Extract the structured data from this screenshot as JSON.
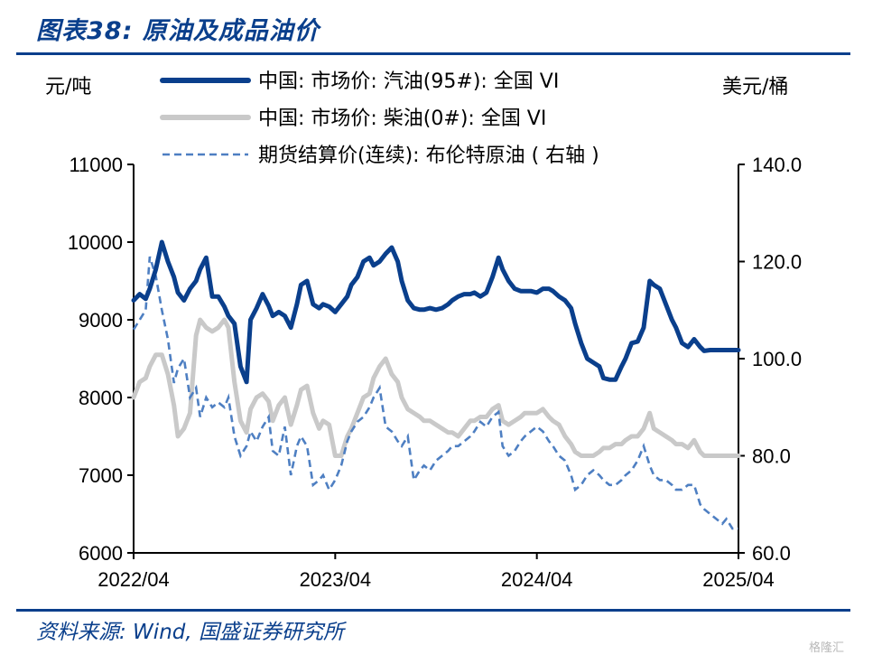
{
  "page": {
    "title": "图表38:  原油及成品油价",
    "source": "资料来源:  Wind,  国盛证券研究所",
    "watermark": "格隆汇"
  },
  "chart_data": {
    "type": "line",
    "title": "图表38:  原油及成品油价",
    "left_axis_unit": "元/吨",
    "right_axis_unit": "美元/桶",
    "left_ylim": [
      6000,
      11000
    ],
    "left_yticks": [
      "11000",
      "10000",
      "9000",
      "8000",
      "7000",
      "6000"
    ],
    "right_ylim": [
      60,
      140
    ],
    "right_yticks": [
      "140.0",
      "120.0",
      "100.0",
      "80.0",
      "60.0"
    ],
    "x_range": [
      2022.25,
      2025.25
    ],
    "x_ticks": [
      "2022/04",
      "2023/04",
      "2024/04",
      "2025/04"
    ],
    "grid": false,
    "legend_position": "top",
    "series": [
      {
        "name": "中国: 市场价: 汽油(95#): 全国 VI",
        "axis": "left",
        "color": "#0a3f8c",
        "style": "solid-thick",
        "x": [
          2022.25,
          2022.28,
          2022.31,
          2022.33,
          2022.36,
          2022.39,
          2022.42,
          2022.45,
          2022.47,
          2022.5,
          2022.53,
          2022.56,
          2022.58,
          2022.61,
          2022.64,
          2022.67,
          2022.7,
          2022.72,
          2022.75,
          2022.78,
          2022.81,
          2022.83,
          2022.86,
          2022.89,
          2022.92,
          2022.94,
          2022.97,
          2023.0,
          2023.03,
          2023.06,
          2023.08,
          2023.11,
          2023.14,
          2023.17,
          2023.19,
          2023.22,
          2023.25,
          2023.28,
          2023.31,
          2023.33,
          2023.36,
          2023.39,
          2023.42,
          2023.44,
          2023.47,
          2023.5,
          2023.53,
          2023.56,
          2023.58,
          2023.61,
          2023.64,
          2023.67,
          2023.69,
          2023.72,
          2023.75,
          2023.78,
          2023.81,
          2023.83,
          2023.86,
          2023.89,
          2023.92,
          2023.94,
          2023.97,
          2024.0,
          2024.03,
          2024.06,
          2024.08,
          2024.11,
          2024.14,
          2024.17,
          2024.19,
          2024.22,
          2024.25,
          2024.28,
          2024.31,
          2024.33,
          2024.36,
          2024.39,
          2024.42,
          2024.44,
          2024.47,
          2024.5,
          2024.53,
          2024.56,
          2024.58,
          2024.61,
          2024.64,
          2024.67,
          2024.69,
          2024.72,
          2024.75,
          2024.78,
          2024.81,
          2024.83,
          2024.86,
          2024.89,
          2024.92,
          2024.94,
          2024.97,
          2025.0,
          2025.03,
          2025.06,
          2025.08,
          2025.11,
          2025.14,
          2025.17,
          2025.19,
          2025.22,
          2025.25
        ],
        "values": [
          9250,
          9330,
          9270,
          9400,
          9650,
          10000,
          9750,
          9550,
          9350,
          9250,
          9400,
          9500,
          9650,
          9800,
          9300,
          9300,
          9170,
          9050,
          8950,
          8400,
          8200,
          9000,
          9150,
          9330,
          9180,
          9050,
          9100,
          9050,
          8900,
          9200,
          9450,
          9500,
          9200,
          9150,
          9200,
          9170,
          9100,
          9200,
          9300,
          9450,
          9550,
          9750,
          9800,
          9700,
          9750,
          9850,
          9930,
          9750,
          9500,
          9250,
          9150,
          9130,
          9130,
          9150,
          9130,
          9150,
          9200,
          9250,
          9300,
          9330,
          9330,
          9350,
          9300,
          9350,
          9550,
          9800,
          9650,
          9500,
          9400,
          9370,
          9370,
          9370,
          9350,
          9400,
          9400,
          9370,
          9300,
          9250,
          9150,
          8950,
          8700,
          8500,
          8450,
          8400,
          8250,
          8230,
          8230,
          8400,
          8500,
          8700,
          8720,
          8900,
          9500,
          9450,
          9400,
          9200,
          9000,
          8900,
          8700,
          8650,
          8750,
          8650,
          8600,
          8610,
          8610,
          8610,
          8610,
          8610,
          8610
        ]
      },
      {
        "name": "中国: 市场价: 柴油(0#): 全国 VI",
        "axis": "left",
        "color": "#c9c9c9",
        "style": "solid-thick",
        "x": [
          2022.25,
          2022.28,
          2022.31,
          2022.33,
          2022.36,
          2022.39,
          2022.42,
          2022.45,
          2022.47,
          2022.5,
          2022.53,
          2022.56,
          2022.58,
          2022.61,
          2022.64,
          2022.67,
          2022.7,
          2022.72,
          2022.75,
          2022.78,
          2022.81,
          2022.83,
          2022.86,
          2022.89,
          2022.92,
          2022.94,
          2022.97,
          2023.0,
          2023.03,
          2023.06,
          2023.08,
          2023.11,
          2023.14,
          2023.17,
          2023.19,
          2023.22,
          2023.25,
          2023.28,
          2023.31,
          2023.33,
          2023.36,
          2023.39,
          2023.42,
          2023.44,
          2023.47,
          2023.5,
          2023.53,
          2023.56,
          2023.58,
          2023.61,
          2023.64,
          2023.67,
          2023.69,
          2023.72,
          2023.75,
          2023.78,
          2023.81,
          2023.83,
          2023.86,
          2023.89,
          2023.92,
          2023.94,
          2023.97,
          2024.0,
          2024.03,
          2024.06,
          2024.08,
          2024.11,
          2024.14,
          2024.17,
          2024.19,
          2024.22,
          2024.25,
          2024.28,
          2024.31,
          2024.33,
          2024.36,
          2024.39,
          2024.42,
          2024.44,
          2024.47,
          2024.5,
          2024.53,
          2024.56,
          2024.58,
          2024.61,
          2024.64,
          2024.67,
          2024.69,
          2024.72,
          2024.75,
          2024.78,
          2024.81,
          2024.83,
          2024.86,
          2024.89,
          2024.92,
          2024.94,
          2024.97,
          2025.0,
          2025.03,
          2025.06,
          2025.08,
          2025.11,
          2025.14,
          2025.17,
          2025.19,
          2025.22,
          2025.25
        ],
        "values": [
          8000,
          8200,
          8250,
          8400,
          8550,
          8550,
          8300,
          7900,
          7500,
          7600,
          7800,
          8800,
          9000,
          8900,
          8850,
          8900,
          9000,
          8900,
          8200,
          7700,
          7550,
          7850,
          8000,
          8050,
          7950,
          7700,
          7900,
          8000,
          7650,
          7900,
          8100,
          8150,
          7800,
          7600,
          7700,
          7650,
          7250,
          7250,
          7500,
          7600,
          7800,
          8000,
          8050,
          8250,
          8400,
          8500,
          8300,
          8200,
          8000,
          7850,
          7800,
          7750,
          7700,
          7700,
          7650,
          7600,
          7550,
          7550,
          7500,
          7600,
          7700,
          7700,
          7750,
          7750,
          7850,
          7900,
          7700,
          7650,
          7700,
          7750,
          7800,
          7800,
          7800,
          7850,
          7750,
          7700,
          7650,
          7500,
          7400,
          7300,
          7250,
          7250,
          7250,
          7300,
          7350,
          7350,
          7400,
          7400,
          7450,
          7500,
          7500,
          7600,
          7800,
          7600,
          7550,
          7500,
          7450,
          7400,
          7400,
          7350,
          7450,
          7300,
          7250,
          7250,
          7250,
          7250,
          7250,
          7250,
          7250
        ]
      },
      {
        "name": "期货结算价(连续): 布伦特原油 ( 右轴 )",
        "axis": "right",
        "color": "#4e7fc2",
        "style": "dashed",
        "x": [
          2022.25,
          2022.28,
          2022.31,
          2022.33,
          2022.36,
          2022.39,
          2022.42,
          2022.45,
          2022.47,
          2022.5,
          2022.53,
          2022.56,
          2022.58,
          2022.61,
          2022.64,
          2022.67,
          2022.7,
          2022.72,
          2022.75,
          2022.78,
          2022.81,
          2022.83,
          2022.86,
          2022.89,
          2022.92,
          2022.94,
          2022.97,
          2023.0,
          2023.03,
          2023.06,
          2023.08,
          2023.11,
          2023.14,
          2023.17,
          2023.19,
          2023.22,
          2023.25,
          2023.28,
          2023.31,
          2023.33,
          2023.36,
          2023.39,
          2023.42,
          2023.44,
          2023.47,
          2023.5,
          2023.53,
          2023.56,
          2023.58,
          2023.61,
          2023.64,
          2023.67,
          2023.69,
          2023.72,
          2023.75,
          2023.78,
          2023.81,
          2023.83,
          2023.86,
          2023.89,
          2023.92,
          2023.94,
          2023.97,
          2024.0,
          2024.03,
          2024.06,
          2024.08,
          2024.11,
          2024.14,
          2024.17,
          2024.19,
          2024.22,
          2024.25,
          2024.28,
          2024.31,
          2024.33,
          2024.36,
          2024.39,
          2024.42,
          2024.44,
          2024.47,
          2024.5,
          2024.53,
          2024.56,
          2024.58,
          2024.61,
          2024.64,
          2024.67,
          2024.69,
          2024.72,
          2024.75,
          2024.78,
          2024.81,
          2024.83,
          2024.86,
          2024.89,
          2024.92,
          2024.94,
          2024.97,
          2025.0,
          2025.03,
          2025.06,
          2025.08,
          2025.11,
          2025.14,
          2025.17,
          2025.19,
          2025.22,
          2025.25
        ],
        "values": [
          106,
          108,
          110,
          121,
          117,
          110,
          104,
          95,
          98,
          100,
          92,
          94,
          88,
          92,
          90,
          91,
          90,
          92,
          84,
          80,
          82,
          85,
          83,
          86,
          88,
          81,
          80,
          86,
          76,
          82,
          84,
          82,
          74,
          75,
          76,
          73,
          75,
          78,
          83,
          85,
          87,
          88,
          90,
          92,
          94,
          86,
          85,
          83,
          82,
          84,
          75,
          77,
          78,
          77,
          79,
          80,
          81,
          82,
          82,
          83,
          84,
          85,
          87,
          86,
          88,
          89,
          82,
          80,
          81,
          83,
          84,
          85,
          86,
          85,
          83,
          82,
          80,
          79,
          76,
          73,
          74,
          76,
          77,
          76,
          75,
          74,
          74,
          75,
          76,
          77,
          79,
          82,
          78,
          76,
          75,
          75,
          74,
          73,
          73,
          74,
          74,
          70,
          69,
          68,
          67,
          66,
          67,
          65,
          65
        ]
      }
    ]
  }
}
